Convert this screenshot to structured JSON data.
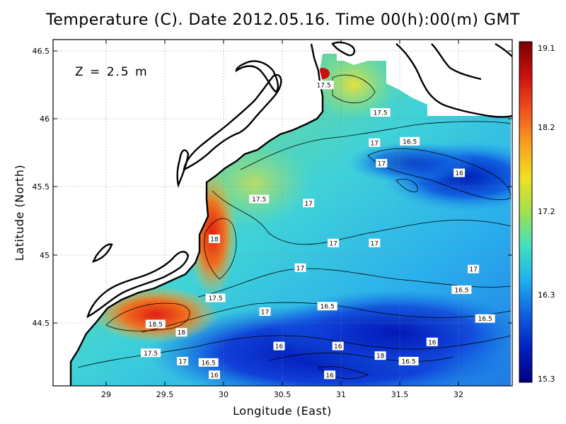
{
  "title": "Temperature (C). Date 2012.05.16. Time 00(h):00(m) GMT",
  "depth_label": "Z = 2.5 m",
  "x_axis_title": "Longitude (East)",
  "y_axis_title": "Latitude (North)",
  "x_ticks": [
    "29",
    "29.5",
    "30",
    "30.5",
    "31",
    "31.5",
    "32"
  ],
  "y_ticks": [
    "46.5",
    "46",
    "45.5",
    "45",
    "44.5"
  ],
  "colorbar": {
    "ticks": [
      "19.1",
      "18.2",
      "17.2",
      "16.3",
      "15.3"
    ],
    "colors": [
      "#7a0000",
      "#cc1010",
      "#f05020",
      "#f8a020",
      "#f0e020",
      "#a0e050",
      "#40e0c0",
      "#20b0f0",
      "#1060e0",
      "#0020c0",
      "#000080"
    ]
  },
  "chart_data": {
    "type": "heatmap",
    "title": "Temperature (C). Date 2012.05.16. Time 00(h):00(m) GMT",
    "xlabel": "Longitude (East)",
    "ylabel": "Latitude (North)",
    "xlim": [
      28.55,
      32.45
    ],
    "ylim": [
      44.03,
      46.55
    ],
    "colorbar_range": [
      15.3,
      19.1
    ],
    "grid": true,
    "contour_labels": [
      {
        "text": "17.5",
        "lon": 30.85,
        "lat": 46.22
      },
      {
        "text": "17.5",
        "lon": 31.33,
        "lat": 46.02
      },
      {
        "text": "16.5",
        "lon": 31.58,
        "lat": 45.81
      },
      {
        "text": "17",
        "lon": 31.28,
        "lat": 45.8
      },
      {
        "text": "17",
        "lon": 31.34,
        "lat": 45.65
      },
      {
        "text": "16",
        "lon": 32.0,
        "lat": 45.58
      },
      {
        "text": "17.5",
        "lon": 30.3,
        "lat": 45.39
      },
      {
        "text": "17",
        "lon": 30.72,
        "lat": 45.36
      },
      {
        "text": "18",
        "lon": 29.92,
        "lat": 45.1
      },
      {
        "text": "17",
        "lon": 30.93,
        "lat": 45.07
      },
      {
        "text": "17",
        "lon": 31.28,
        "lat": 45.07
      },
      {
        "text": "17",
        "lon": 30.65,
        "lat": 44.89
      },
      {
        "text": "17",
        "lon": 32.12,
        "lat": 44.88
      },
      {
        "text": "17.5",
        "lon": 29.93,
        "lat": 44.67
      },
      {
        "text": "16.5",
        "lon": 32.02,
        "lat": 44.73
      },
      {
        "text": "16.5",
        "lon": 30.88,
        "lat": 44.61
      },
      {
        "text": "17",
        "lon": 30.35,
        "lat": 44.57
      },
      {
        "text": "16.5",
        "lon": 32.22,
        "lat": 44.52
      },
      {
        "text": "18.5",
        "lon": 29.42,
        "lat": 44.48
      },
      {
        "text": "18",
        "lon": 29.64,
        "lat": 44.42
      },
      {
        "text": "16",
        "lon": 30.47,
        "lat": 44.32
      },
      {
        "text": "16",
        "lon": 30.97,
        "lat": 44.32
      },
      {
        "text": "16",
        "lon": 31.77,
        "lat": 44.35
      },
      {
        "text": "17.5",
        "lon": 29.38,
        "lat": 44.27
      },
      {
        "text": "18",
        "lon": 31.33,
        "lat": 44.25
      },
      {
        "text": "17",
        "lon": 29.65,
        "lat": 44.21
      },
      {
        "text": "16.5",
        "lon": 29.87,
        "lat": 44.2
      },
      {
        "text": "16.5",
        "lon": 31.57,
        "lat": 44.21
      },
      {
        "text": "16",
        "lon": 29.92,
        "lat": 44.11
      },
      {
        "text": "16",
        "lon": 30.9,
        "lat": 44.11
      }
    ]
  }
}
